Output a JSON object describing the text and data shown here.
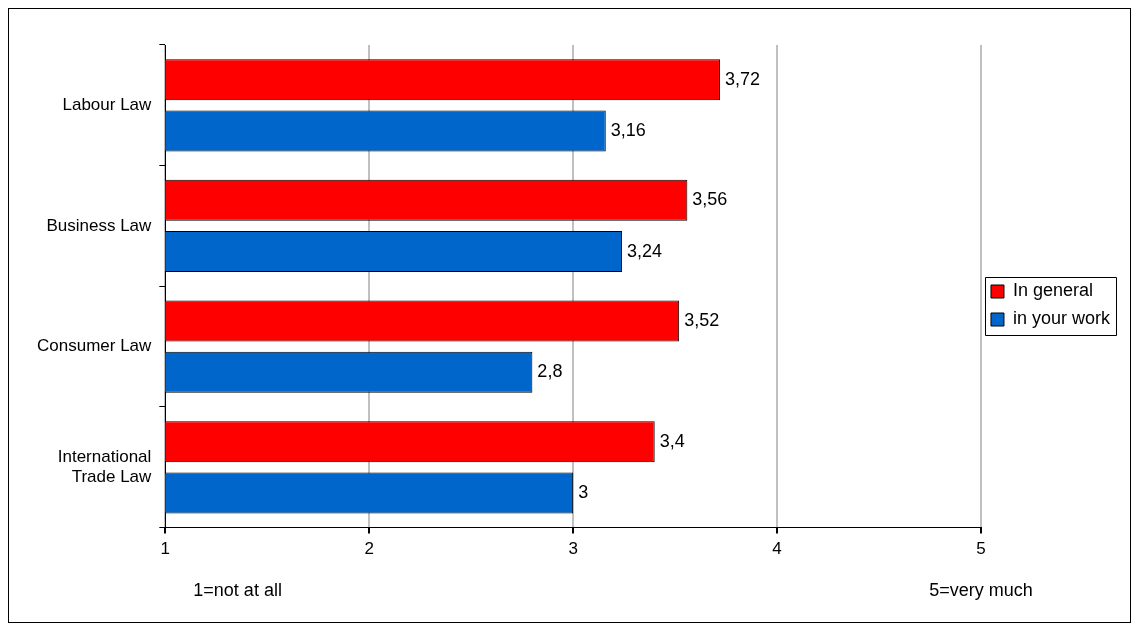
{
  "chart_data": {
    "type": "bar",
    "orientation": "horizontal",
    "categories": [
      "Labour Law",
      "Business Law",
      "Consumer Law",
      "International Trade Law"
    ],
    "series": [
      {
        "name": "In general",
        "color": "#ff0000",
        "values": [
          3.72,
          3.56,
          3.52,
          3.4
        ],
        "value_labels": [
          "3,72",
          "3,56",
          "3,52",
          "3,4"
        ]
      },
      {
        "name": "in your work",
        "color": "#0066cc",
        "values": [
          3.16,
          3.24,
          2.8,
          3
        ],
        "value_labels": [
          "3,16",
          "3,24",
          "2,8",
          "3"
        ]
      }
    ],
    "xlim": [
      1,
      5
    ],
    "xticks": [
      1,
      2,
      3,
      4,
      5
    ],
    "grid": "x",
    "legend": "right",
    "annotations": [
      "1=not at all",
      "5=very much"
    ]
  }
}
